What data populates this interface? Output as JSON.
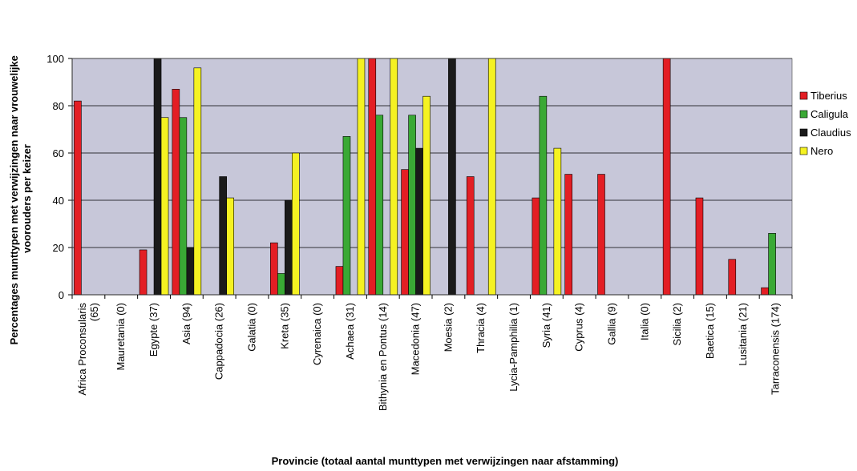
{
  "chart_data": {
    "type": "bar",
    "title": "",
    "xlabel": "Provincie (totaal aantal munttypen met verwijzingen naar afstamming)",
    "ylabel_lines": [
      "Percentages munttypen met verwijzingen naar vrouwelijke",
      "voorouders per keizer"
    ],
    "ylim": [
      0,
      100
    ],
    "yticks": [
      0,
      20,
      40,
      60,
      80,
      100
    ],
    "grid": true,
    "legend_position": "right",
    "categories": [
      [
        "Africa Proconsularis",
        "(65)"
      ],
      [
        "Mauretania (0)"
      ],
      [
        "Egypte (37)"
      ],
      [
        "Asia (94)"
      ],
      [
        "Cappadocia (26)"
      ],
      [
        "Galatia (0)"
      ],
      [
        "Kreta (35)"
      ],
      [
        "Cyrenaica (0)"
      ],
      [
        "Achaea (31)"
      ],
      [
        "Bithynia en Pontus (14)"
      ],
      [
        "Macedonia (47)"
      ],
      [
        "Moesia (2)"
      ],
      [
        "Thracia (4)"
      ],
      [
        "Lycia-Pamphilia (1)"
      ],
      [
        "Syria (41)"
      ],
      [
        "Cyprus (4)"
      ],
      [
        "Gallia (9)"
      ],
      [
        "Italia (0)"
      ],
      [
        "Sicilia (2)"
      ],
      [
        "Baetica (15)"
      ],
      [
        "Lusitania (21)"
      ],
      [
        "Tarraconensis (174)"
      ]
    ],
    "series": [
      {
        "name": "Tiberius",
        "color": "#e31e24",
        "values": [
          82,
          0,
          19,
          87,
          0,
          0,
          22,
          0,
          12,
          100,
          53,
          0,
          50,
          0,
          41,
          51,
          51,
          0,
          100,
          41,
          15,
          3
        ]
      },
      {
        "name": "Caligula",
        "color": "#3aa935",
        "values": [
          0,
          0,
          0,
          75,
          0,
          0,
          9,
          0,
          67,
          76,
          76,
          0,
          0,
          0,
          84,
          0,
          0,
          0,
          0,
          0,
          0,
          26
        ]
      },
      {
        "name": "Claudius",
        "color": "#1a1a1a",
        "values": [
          0,
          0,
          100,
          20,
          50,
          0,
          40,
          0,
          0,
          0,
          62,
          100,
          0,
          0,
          0,
          0,
          0,
          0,
          0,
          0,
          0,
          0
        ]
      },
      {
        "name": "Nero",
        "color": "#f5f222",
        "values": [
          0,
          0,
          75,
          96,
          41,
          0,
          60,
          0,
          100,
          100,
          84,
          0,
          100,
          0,
          62,
          0,
          0,
          0,
          0,
          0,
          0,
          0
        ]
      }
    ],
    "colors": {
      "plot_background": "#c7c7d9",
      "gridline": "#000000"
    }
  }
}
